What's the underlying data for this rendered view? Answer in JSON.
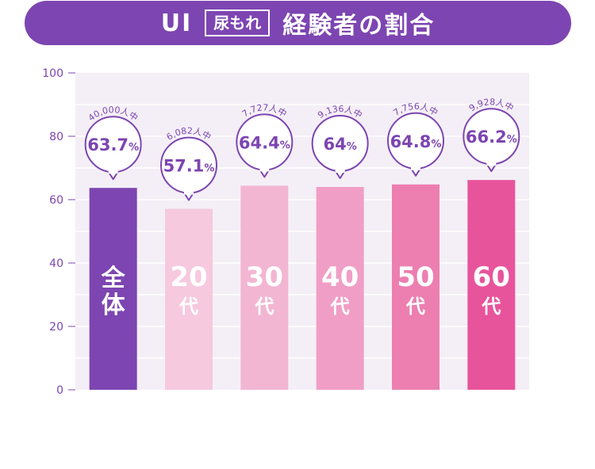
{
  "header": {
    "ui": "UI",
    "tag": "尿もれ",
    "rest": "経験者の割合"
  },
  "colors": {
    "title_bg": "#7d45b1",
    "plot_bg": "#f4eff6",
    "grid": "#ffffff",
    "axis_text": "#7d45b1",
    "bubble_stroke": "#7d45b1"
  },
  "chart_data": {
    "type": "bar",
    "categories": [
      "全体",
      "20代",
      "30代",
      "40代",
      "50代",
      "60代"
    ],
    "category_labels": [
      {
        "top": "全",
        "bottom": "体"
      },
      {
        "top": "20",
        "bottom": "代"
      },
      {
        "top": "30",
        "bottom": "代"
      },
      {
        "top": "40",
        "bottom": "代"
      },
      {
        "top": "50",
        "bottom": "代"
      },
      {
        "top": "60",
        "bottom": "代"
      }
    ],
    "values": [
      63.7,
      57.1,
      64.4,
      64,
      64.8,
      66.2
    ],
    "value_labels": [
      "63.7",
      "57.1",
      "64.4",
      "64",
      "64.8",
      "66.2"
    ],
    "value_unit": "%",
    "sample_sizes": [
      "40,000人中",
      "6,082人中",
      "7,727人中",
      "9,136人中",
      "7,756人中",
      "9,928人中"
    ],
    "bar_colors": [
      "#7d45b1",
      "#f6c9de",
      "#f2b6d2",
      "#f09ec6",
      "#ec7fb0",
      "#e8549c"
    ],
    "ylim": [
      0,
      100
    ],
    "yticks": [
      0,
      20,
      40,
      60,
      80,
      100
    ],
    "grid": true
  }
}
